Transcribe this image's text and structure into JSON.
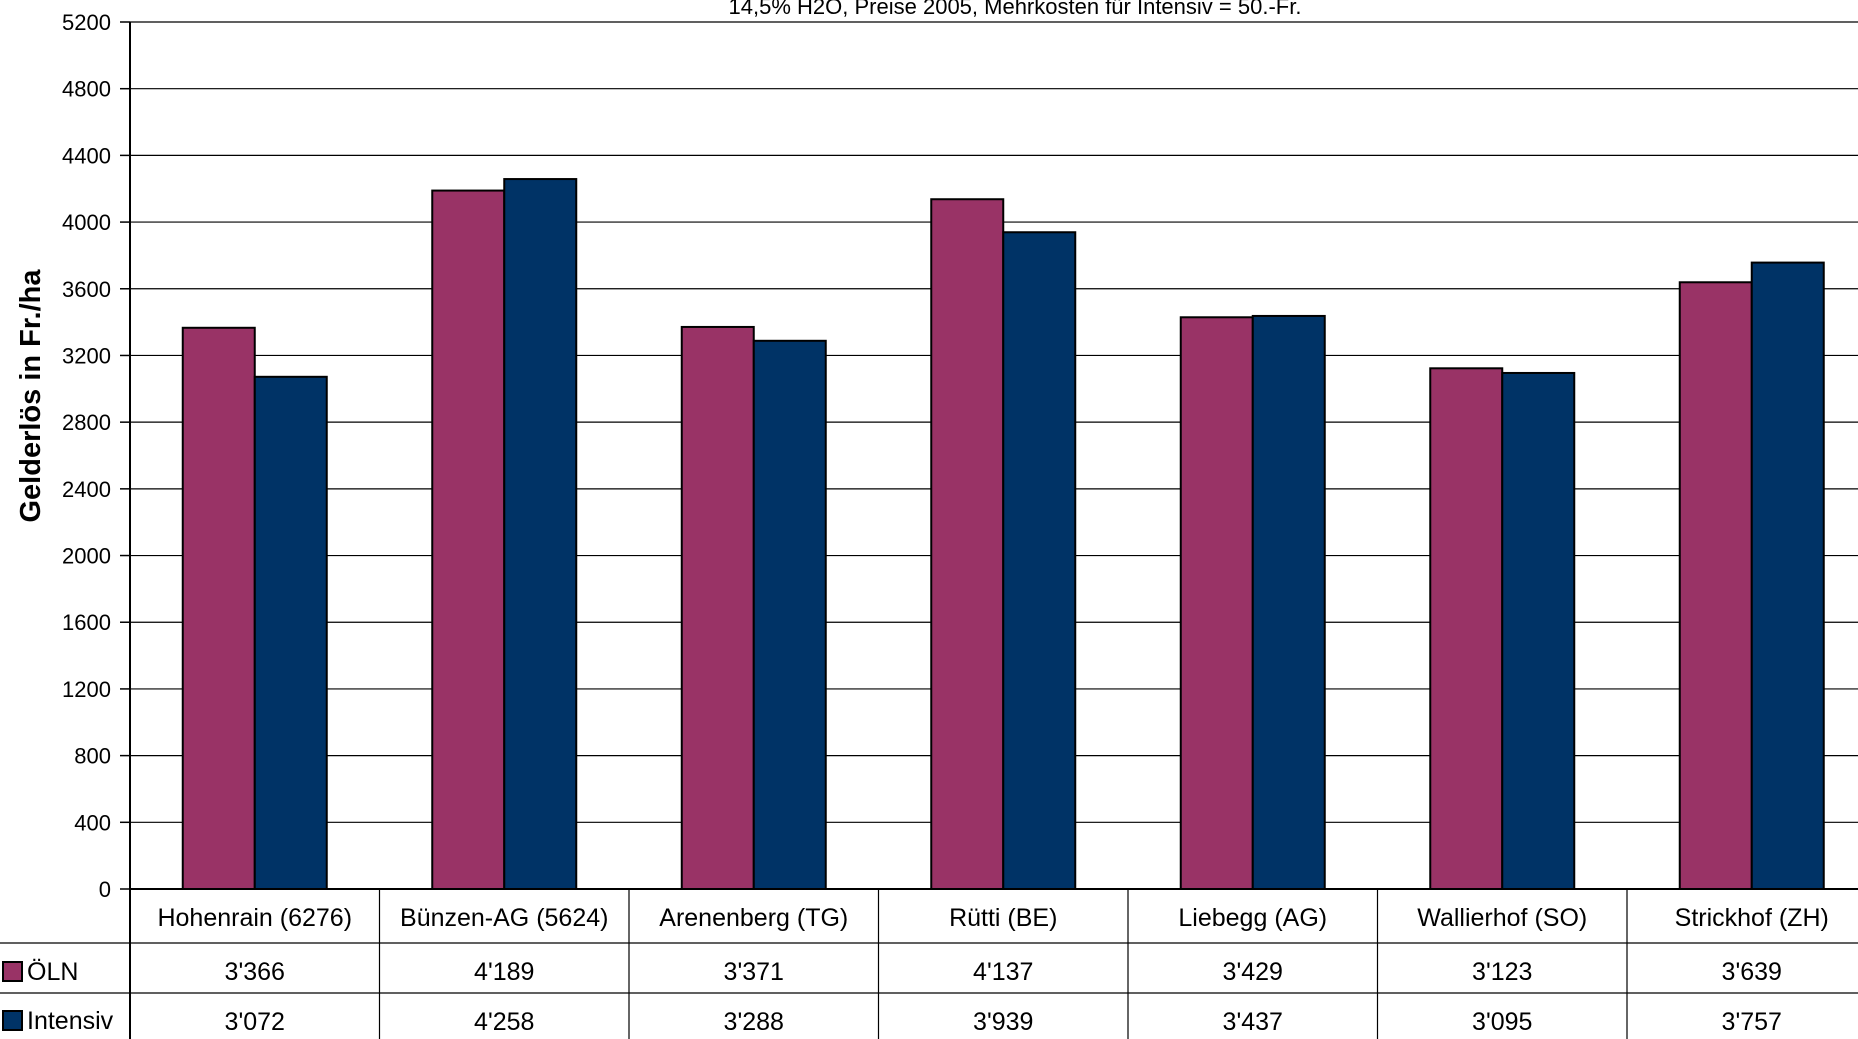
{
  "chart_data": {
    "type": "bar",
    "subtitle": "14,5% H2O, Preise 2005, Mehrkosten für Intensiv = 50.-Fr.",
    "ylabel": "Gelderlös in Fr./ha",
    "xlabel": "",
    "ylim": [
      0,
      5200
    ],
    "yticks": [
      0,
      400,
      800,
      1200,
      1600,
      2000,
      2400,
      2800,
      3200,
      3600,
      4000,
      4400,
      4800,
      5200
    ],
    "grid": true,
    "legend_position": "data-table-left",
    "categories": [
      "Hohenrain (6276)",
      "Bünzen-AG (5624)",
      "Arenenberg (TG)",
      "Rütti (BE)",
      "Liebegg (AG)",
      "Wallierhof (SO)",
      "Strickhof (ZH)"
    ],
    "series": [
      {
        "name": "ÖLN",
        "color": "#993366",
        "values": [
          3366,
          4189,
          3371,
          4137,
          3429,
          3123,
          3639
        ],
        "labels": [
          "3'366",
          "4'189",
          "3'371",
          "4'137",
          "3'429",
          "3'123",
          "3'639"
        ]
      },
      {
        "name": "Intensiv",
        "color": "#003366",
        "values": [
          3072,
          4258,
          3288,
          3939,
          3437,
          3095,
          3757
        ],
        "labels": [
          "3'072",
          "4'258",
          "3'288",
          "3'939",
          "3'437",
          "3'095",
          "3'757"
        ]
      }
    ]
  }
}
